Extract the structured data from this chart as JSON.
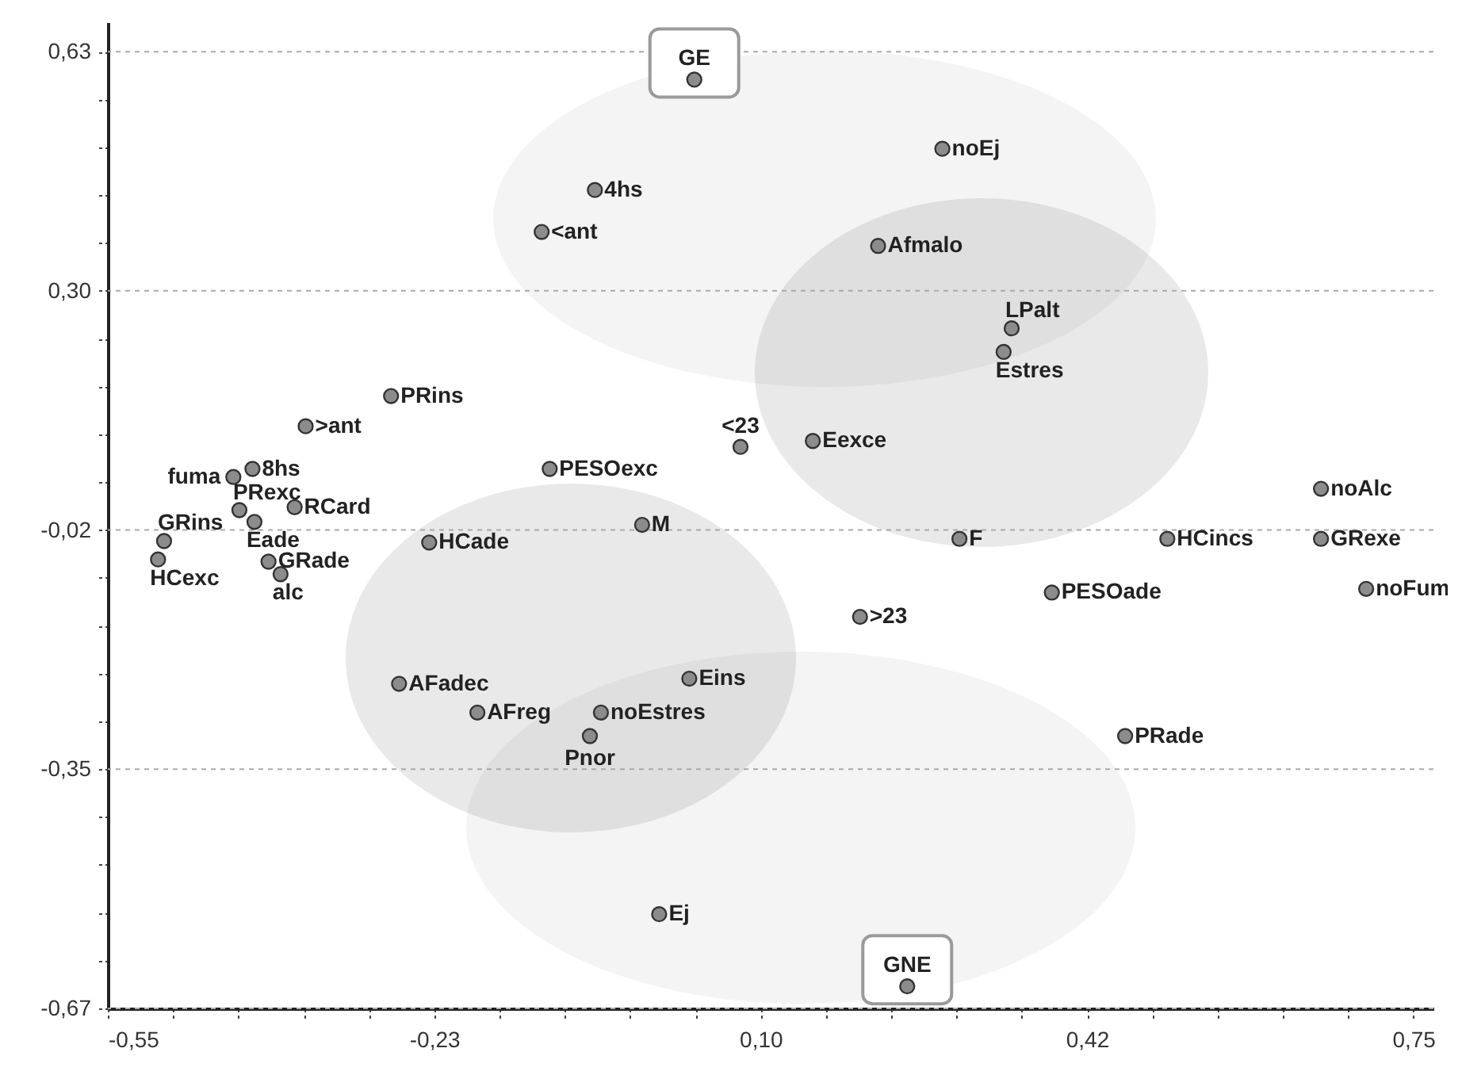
{
  "chart_data": {
    "type": "scatter",
    "color": "#8c8c8c",
    "marker": "circle",
    "grid": "y",
    "x": [
      0.034,
      0.281,
      -0.065,
      -0.118,
      0.217,
      0.35,
      0.342,
      -0.268,
      -0.353,
      0.08,
      0.152,
      -0.406,
      -0.425,
      -0.11,
      -0.419,
      -0.364,
      -0.404,
      -0.018,
      0.658,
      -0.494,
      -0.23,
      0.298,
      0.505,
      0.658,
      -0.5,
      -0.39,
      -0.378,
      0.703,
      0.39,
      0.199,
      0.029,
      -0.26,
      -0.182,
      -0.059,
      -0.07,
      0.463,
      -0.001,
      0.246
    ],
    "values": [
      0.592,
      0.498,
      0.442,
      0.385,
      0.366,
      0.254,
      0.222,
      0.162,
      0.121,
      0.093,
      0.101,
      0.063,
      0.052,
      0.063,
      0.007,
      0.011,
      -0.009,
      -0.013,
      0.036,
      -0.035,
      -0.037,
      -0.032,
      -0.032,
      -0.032,
      -0.06,
      -0.063,
      -0.08,
      -0.1,
      -0.105,
      -0.138,
      -0.222,
      -0.229,
      -0.268,
      -0.268,
      -0.3,
      -0.3,
      -0.542,
      -0.64
    ],
    "xlim": [
      -0.55,
      0.77
    ],
    "ylim": [
      -0.67,
      0.67
    ],
    "xticks": [
      {
        "value": -0.55,
        "label": "-0,55"
      },
      {
        "value": -0.485,
        "label": null
      },
      {
        "value": -0.42,
        "label": null
      },
      {
        "value": -0.355,
        "label": null
      },
      {
        "value": -0.29,
        "label": null
      },
      {
        "value": -0.225,
        "label": "-0,23"
      },
      {
        "value": -0.16,
        "label": null
      },
      {
        "value": -0.095,
        "label": null
      },
      {
        "value": -0.03,
        "label": null
      },
      {
        "value": 0.035,
        "label": null
      },
      {
        "value": 0.1,
        "label": "0,10"
      },
      {
        "value": 0.165,
        "label": null
      },
      {
        "value": 0.23,
        "label": null
      },
      {
        "value": 0.295,
        "label": null
      },
      {
        "value": 0.36,
        "label": null
      },
      {
        "value": 0.425,
        "label": "0,42"
      },
      {
        "value": 0.49,
        "label": null
      },
      {
        "value": 0.555,
        "label": null
      },
      {
        "value": 0.62,
        "label": null
      },
      {
        "value": 0.685,
        "label": null
      },
      {
        "value": 0.75,
        "label": "0,75"
      }
    ],
    "yticks": [
      {
        "value": -0.67,
        "label": "-0,67"
      },
      {
        "value": -0.605,
        "label": null
      },
      {
        "value": -0.54,
        "label": null
      },
      {
        "value": -0.475,
        "label": null
      },
      {
        "value": -0.41,
        "label": null
      },
      {
        "value": -0.345,
        "label": "-0,35"
      },
      {
        "value": -0.28,
        "label": null
      },
      {
        "value": -0.215,
        "label": null
      },
      {
        "value": -0.15,
        "label": null
      },
      {
        "value": -0.085,
        "label": null
      },
      {
        "value": -0.02,
        "label": "-0,02"
      },
      {
        "value": 0.045,
        "label": null
      },
      {
        "value": 0.11,
        "label": null
      },
      {
        "value": 0.175,
        "label": null
      },
      {
        "value": 0.24,
        "label": null
      },
      {
        "value": 0.305,
        "label": "0,30"
      },
      {
        "value": 0.37,
        "label": null
      },
      {
        "value": 0.435,
        "label": null
      },
      {
        "value": 0.5,
        "label": null
      },
      {
        "value": 0.565,
        "label": null
      },
      {
        "value": 0.63,
        "label": "0,63"
      }
    ],
    "annotations": [
      {
        "text": "GE",
        "x": 0.034,
        "y": 0.592
      },
      {
        "text": "noEj",
        "x": 0.281,
        "y": 0.498
      },
      {
        "text": "4hs",
        "x": -0.065,
        "y": 0.442
      },
      {
        "text": "<ant",
        "x": -0.118,
        "y": 0.385
      },
      {
        "text": "Afmalo",
        "x": 0.217,
        "y": 0.366
      },
      {
        "text": "LPalt",
        "x": 0.35,
        "y": 0.254
      },
      {
        "text": "Estres",
        "x": 0.342,
        "y": 0.222
      },
      {
        "text": "PRins",
        "x": -0.268,
        "y": 0.162
      },
      {
        "text": ">ant",
        "x": -0.353,
        "y": 0.121
      },
      {
        "text": "<23",
        "x": 0.08,
        "y": 0.093
      },
      {
        "text": "Eexce",
        "x": 0.152,
        "y": 0.101
      },
      {
        "text": "8hs",
        "x": -0.406,
        "y": 0.063
      },
      {
        "text": "fuma",
        "x": -0.425,
        "y": 0.052
      },
      {
        "text": "PESOexc",
        "x": -0.11,
        "y": 0.063
      },
      {
        "text": "PRexc",
        "x": -0.419,
        "y": 0.007
      },
      {
        "text": "RCard",
        "x": -0.364,
        "y": 0.011
      },
      {
        "text": "Eade",
        "x": -0.404,
        "y": -0.009
      },
      {
        "text": "M",
        "x": -0.018,
        "y": -0.013
      },
      {
        "text": "noAlc",
        "x": 0.658,
        "y": 0.036
      },
      {
        "text": "GRins",
        "x": -0.494,
        "y": -0.035
      },
      {
        "text": "HCade",
        "x": -0.23,
        "y": -0.037
      },
      {
        "text": "F",
        "x": 0.298,
        "y": -0.032
      },
      {
        "text": "HCincs",
        "x": 0.505,
        "y": -0.032
      },
      {
        "text": "GRexe",
        "x": 0.658,
        "y": -0.032
      },
      {
        "text": "HCexc",
        "x": -0.5,
        "y": -0.06
      },
      {
        "text": "GRade",
        "x": -0.39,
        "y": -0.063
      },
      {
        "text": "alc",
        "x": -0.378,
        "y": -0.08
      },
      {
        "text": "noFum",
        "x": 0.703,
        "y": -0.1
      },
      {
        "text": "PESOade",
        "x": 0.39,
        "y": -0.105
      },
      {
        "text": ">23",
        "x": 0.199,
        "y": -0.138
      },
      {
        "text": "Eins",
        "x": 0.029,
        "y": -0.222
      },
      {
        "text": "AFadec",
        "x": -0.26,
        "y": -0.229
      },
      {
        "text": "AFreg",
        "x": -0.182,
        "y": -0.268
      },
      {
        "text": "noEstres",
        "x": -0.059,
        "y": -0.268
      },
      {
        "text": "Pnor",
        "x": -0.07,
        "y": -0.3
      },
      {
        "text": "PRade",
        "x": 0.463,
        "y": -0.3
      },
      {
        "text": "Ej",
        "x": -0.001,
        "y": -0.542
      },
      {
        "text": "GNE",
        "x": 0.246,
        "y": -0.64
      }
    ]
  }
}
